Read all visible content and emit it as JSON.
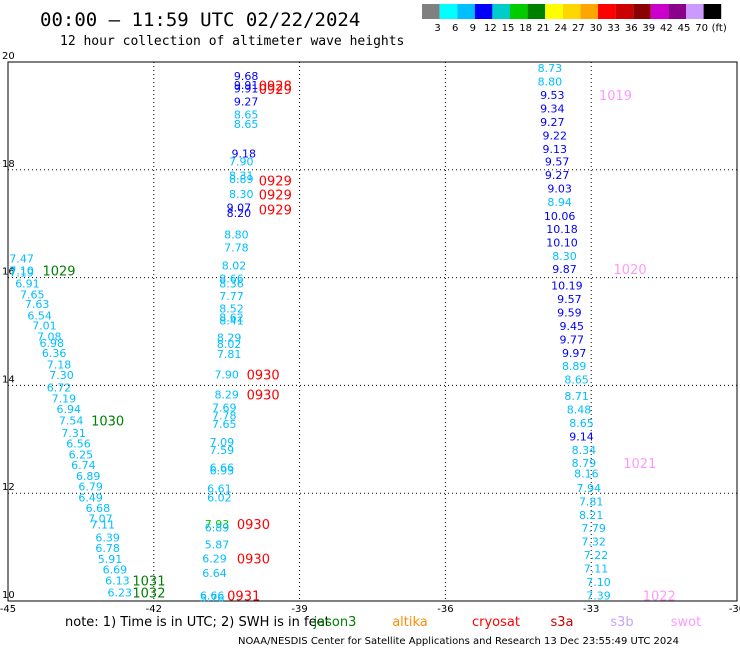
{
  "header": {
    "title": "00:00 – 11:59 UTC 02/22/2024",
    "subtitle": "12 hour collection of altimeter wave heights"
  },
  "colorbar": {
    "labels": [
      "3",
      "6",
      "9",
      "12",
      "15",
      "18",
      "21",
      "24",
      "27",
      "30",
      "33",
      "36",
      "39",
      "42",
      "45",
      "70",
      "(ft)"
    ],
    "colors": [
      "#808080",
      "#00ffff",
      "#00bfff",
      "#0000ff",
      "#00cccc",
      "#00cc00",
      "#008000",
      "#ffff00",
      "#ffd700",
      "#ffa500",
      "#ff0000",
      "#cc0000",
      "#8b0000",
      "#cc00cc",
      "#8b008b",
      "#cc99ff",
      "#000000"
    ]
  },
  "footer": {
    "note": "note:  1) Time is in UTC; 2) SWH is in feet",
    "satellites": [
      {
        "name": "jason3",
        "color": "#008000"
      },
      {
        "name": "altika",
        "color": "#ff8c00"
      },
      {
        "name": "cryosat",
        "color": "#ff0000"
      },
      {
        "name": "s3a",
        "color": "#cc0000"
      },
      {
        "name": "s3b",
        "color": "#c8a2ff"
      },
      {
        "name": "swot",
        "color": "#ff99ff"
      }
    ],
    "credit": "NOAA/NESDIS Center for Satellite Applications and Research   13 Dec 23:55:49 UTC 2024"
  },
  "chart_data": {
    "type": "scatter",
    "xlim": [
      -45,
      -30
    ],
    "ylim": [
      10,
      20
    ],
    "x_ticks": [
      "-45",
      "-42",
      "-39",
      "-36",
      "-33",
      "-30"
    ],
    "y_ticks": [
      "10",
      "12",
      "14",
      "16",
      "18",
      "20"
    ],
    "grid": true,
    "tracks": [
      {
        "name": "left track",
        "points": [
          {
            "x": -44.72,
            "y": 16.35,
            "v": "7.47",
            "c": "#00bfff"
          },
          {
            "x": -44.72,
            "y": 16.13,
            "v": "7.10",
            "c": "#00bfff"
          },
          {
            "x": -44.72,
            "y": 16.09,
            "v": "7.19",
            "c": "#00bfff"
          },
          {
            "x": -44.6,
            "y": 15.89,
            "v": "6.91",
            "c": "#00bfff"
          },
          {
            "x": -44.5,
            "y": 15.69,
            "v": "7.65",
            "c": "#00bfff"
          },
          {
            "x": -44.4,
            "y": 15.51,
            "v": "7.63",
            "c": "#00bfff"
          },
          {
            "x": -44.35,
            "y": 15.3,
            "v": "6.54",
            "c": "#00bfff"
          },
          {
            "x": -44.25,
            "y": 15.11,
            "v": "7.01",
            "c": "#00bfff"
          },
          {
            "x": -44.15,
            "y": 14.91,
            "v": "7.08",
            "c": "#00bfff"
          },
          {
            "x": -44.1,
            "y": 14.79,
            "v": "6.98",
            "c": "#00bfff"
          },
          {
            "x": -44.05,
            "y": 14.6,
            "v": "6.36",
            "c": "#00bfff"
          },
          {
            "x": -43.95,
            "y": 14.39,
            "v": "7.18",
            "c": "#00bfff"
          },
          {
            "x": -43.9,
            "y": 14.19,
            "v": "7.30",
            "c": "#00bfff"
          },
          {
            "x": -43.95,
            "y": 13.96,
            "v": "6.72",
            "c": "#00bfff"
          },
          {
            "x": -43.85,
            "y": 13.76,
            "v": "7.19",
            "c": "#00bfff"
          },
          {
            "x": -43.75,
            "y": 13.56,
            "v": "6.94",
            "c": "#00bfff"
          },
          {
            "x": -43.7,
            "y": 13.35,
            "v": "7.54",
            "c": "#00bfff"
          },
          {
            "x": -43.65,
            "y": 13.12,
            "v": "7.31",
            "c": "#00bfff"
          },
          {
            "x": -43.55,
            "y": 12.92,
            "v": "6.56",
            "c": "#00bfff"
          },
          {
            "x": -43.5,
            "y": 12.72,
            "v": "6.25",
            "c": "#00bfff"
          },
          {
            "x": -43.45,
            "y": 12.52,
            "v": "6.74",
            "c": "#00bfff"
          },
          {
            "x": -43.35,
            "y": 12.32,
            "v": "6.89",
            "c": "#00bfff"
          },
          {
            "x": -43.3,
            "y": 12.12,
            "v": "6.79",
            "c": "#00bfff"
          },
          {
            "x": -43.3,
            "y": 11.92,
            "v": "6.49",
            "c": "#00bfff"
          },
          {
            "x": -43.15,
            "y": 11.73,
            "v": "6.68",
            "c": "#00bfff"
          },
          {
            "x": -43.1,
            "y": 11.53,
            "v": "7.07",
            "c": "#00bfff"
          },
          {
            "x": -43.05,
            "y": 11.42,
            "v": "7.11",
            "c": "#00bfff"
          },
          {
            "x": -42.95,
            "y": 11.18,
            "v": "6.39",
            "c": "#00bfff"
          },
          {
            "x": -42.95,
            "y": 10.98,
            "v": "6.78",
            "c": "#00bfff"
          },
          {
            "x": -42.9,
            "y": 10.78,
            "v": "5.91",
            "c": "#00bfff"
          },
          {
            "x": -42.8,
            "y": 10.58,
            "v": "6.69",
            "c": "#00bfff"
          },
          {
            "x": -42.75,
            "y": 10.38,
            "v": "6.13",
            "c": "#00bfff"
          },
          {
            "x": -42.7,
            "y": 10.16,
            "v": "6.23",
            "c": "#00bfff"
          }
        ]
      },
      {
        "name": "middle track",
        "points": [
          {
            "x": -40.1,
            "y": 19.74,
            "v": "9.68",
            "c": "#0000ff"
          },
          {
            "x": -40.1,
            "y": 19.57,
            "v": "9.91",
            "c": "#0000ff"
          },
          {
            "x": -40.1,
            "y": 19.51,
            "v": "9.91",
            "c": "#0000ff"
          },
          {
            "x": -40.1,
            "y": 19.27,
            "v": "9.27",
            "c": "#0000ff"
          },
          {
            "x": -40.1,
            "y": 19.03,
            "v": "8.65",
            "c": "#00bfff"
          },
          {
            "x": -40.1,
            "y": 18.85,
            "v": "8.65",
            "c": "#00bfff"
          },
          {
            "x": -40.15,
            "y": 18.3,
            "v": "9.18",
            "c": "#0000ff"
          },
          {
            "x": -40.2,
            "y": 18.15,
            "v": "7.90",
            "c": "#00bfff"
          },
          {
            "x": -40.2,
            "y": 17.89,
            "v": "8.31",
            "c": "#00bfff"
          },
          {
            "x": -40.2,
            "y": 17.83,
            "v": "8.89",
            "c": "#00bfff"
          },
          {
            "x": -40.2,
            "y": 17.55,
            "v": "8.30",
            "c": "#00bfff"
          },
          {
            "x": -40.25,
            "y": 17.3,
            "v": "9.07",
            "c": "#0000ff"
          },
          {
            "x": -40.25,
            "y": 17.2,
            "v": "8.20",
            "c": "#0000ff"
          },
          {
            "x": -40.3,
            "y": 16.8,
            "v": "8.80",
            "c": "#00bfff"
          },
          {
            "x": -40.3,
            "y": 16.56,
            "v": "7.78",
            "c": "#00bfff"
          },
          {
            "x": -40.35,
            "y": 16.22,
            "v": "8.02",
            "c": "#00bfff"
          },
          {
            "x": -40.4,
            "y": 15.98,
            "v": "8.66",
            "c": "#00bfff"
          },
          {
            "x": -40.4,
            "y": 15.89,
            "v": "8.36",
            "c": "#00bfff"
          },
          {
            "x": -40.4,
            "y": 15.66,
            "v": "7.77",
            "c": "#00bfff"
          },
          {
            "x": -40.4,
            "y": 15.43,
            "v": "8.52",
            "c": "#00bfff"
          },
          {
            "x": -40.4,
            "y": 15.26,
            "v": "8.62",
            "c": "#00bfff"
          },
          {
            "x": -40.4,
            "y": 15.2,
            "v": "8.41",
            "c": "#00bfff"
          },
          {
            "x": -40.45,
            "y": 14.89,
            "v": "8.29",
            "c": "#00bfff"
          },
          {
            "x": -40.45,
            "y": 14.77,
            "v": "8.02",
            "c": "#00bfff"
          },
          {
            "x": -40.45,
            "y": 14.58,
            "v": "7.81",
            "c": "#00bfff"
          },
          {
            "x": -40.5,
            "y": 14.2,
            "v": "7.90",
            "c": "#00bfff"
          },
          {
            "x": -40.5,
            "y": 13.83,
            "v": "8.29",
            "c": "#00bfff"
          },
          {
            "x": -40.55,
            "y": 13.59,
            "v": "7.69",
            "c": "#00bfff"
          },
          {
            "x": -40.55,
            "y": 13.44,
            "v": "7.78",
            "c": "#00bfff"
          },
          {
            "x": -40.55,
            "y": 13.28,
            "v": "7.65",
            "c": "#00bfff"
          },
          {
            "x": -40.6,
            "y": 12.95,
            "v": "7.09",
            "c": "#00bfff"
          },
          {
            "x": -40.6,
            "y": 12.8,
            "v": "7.59",
            "c": "#00bfff"
          },
          {
            "x": -40.6,
            "y": 12.48,
            "v": "6.66",
            "c": "#00bfff"
          },
          {
            "x": -40.6,
            "y": 12.42,
            "v": "6.93",
            "c": "#00bfff"
          },
          {
            "x": -40.65,
            "y": 12.09,
            "v": "6.61",
            "c": "#00bfff"
          },
          {
            "x": -40.65,
            "y": 11.92,
            "v": "6.02",
            "c": "#00bfff"
          },
          {
            "x": -40.7,
            "y": 11.43,
            "v": "7.93",
            "c": "#00cc00"
          },
          {
            "x": -40.7,
            "y": 11.36,
            "v": "6.89",
            "c": "#00bfff"
          },
          {
            "x": -40.7,
            "y": 11.05,
            "v": "5.87",
            "c": "#00bfff"
          },
          {
            "x": -40.75,
            "y": 10.79,
            "v": "6.29",
            "c": "#00bfff"
          },
          {
            "x": -40.75,
            "y": 10.52,
            "v": "6.64",
            "c": "#00bfff"
          },
          {
            "x": -40.8,
            "y": 10.1,
            "v": "6.66",
            "c": "#00bfff"
          },
          {
            "x": -40.8,
            "y": 10.06,
            "v": "5.76",
            "c": "#00bfff"
          }
        ]
      },
      {
        "name": "right track",
        "points": [
          {
            "x": -33.85,
            "y": 19.89,
            "v": "8.73",
            "c": "#00bfff"
          },
          {
            "x": -33.85,
            "y": 19.64,
            "v": "8.80",
            "c": "#00bfff"
          },
          {
            "x": -33.8,
            "y": 19.39,
            "v": "9.53",
            "c": "#0000ff"
          },
          {
            "x": -33.8,
            "y": 19.14,
            "v": "9.34",
            "c": "#0000ff"
          },
          {
            "x": -33.8,
            "y": 18.89,
            "v": "9.27",
            "c": "#0000ff"
          },
          {
            "x": -33.75,
            "y": 18.64,
            "v": "9.22",
            "c": "#0000ff"
          },
          {
            "x": -33.75,
            "y": 18.39,
            "v": "9.13",
            "c": "#0000ff"
          },
          {
            "x": -33.7,
            "y": 18.15,
            "v": "9.57",
            "c": "#0000ff"
          },
          {
            "x": -33.7,
            "y": 17.9,
            "v": "9.27",
            "c": "#0000ff"
          },
          {
            "x": -33.65,
            "y": 17.65,
            "v": "9.03",
            "c": "#0000ff"
          },
          {
            "x": -33.65,
            "y": 17.4,
            "v": "8.94",
            "c": "#00bfff"
          },
          {
            "x": -33.65,
            "y": 17.14,
            "v": "10.06",
            "c": "#0000ff"
          },
          {
            "x": -33.6,
            "y": 16.9,
            "v": "10.18",
            "c": "#0000ff"
          },
          {
            "x": -33.6,
            "y": 16.65,
            "v": "10.10",
            "c": "#0000ff"
          },
          {
            "x": -33.55,
            "y": 16.4,
            "v": "8.30",
            "c": "#00bfff"
          },
          {
            "x": -33.55,
            "y": 16.16,
            "v": "9.87",
            "c": "#0000ff"
          },
          {
            "x": -33.5,
            "y": 15.85,
            "v": "10.19",
            "c": "#0000ff"
          },
          {
            "x": -33.45,
            "y": 15.6,
            "v": "9.57",
            "c": "#0000ff"
          },
          {
            "x": -33.45,
            "y": 15.35,
            "v": "9.59",
            "c": "#0000ff"
          },
          {
            "x": -33.4,
            "y": 15.1,
            "v": "9.45",
            "c": "#0000ff"
          },
          {
            "x": -33.4,
            "y": 14.85,
            "v": "9.77",
            "c": "#0000ff"
          },
          {
            "x": -33.35,
            "y": 14.6,
            "v": "9.97",
            "c": "#0000ff"
          },
          {
            "x": -33.35,
            "y": 14.36,
            "v": "8.89",
            "c": "#00bfff"
          },
          {
            "x": -33.3,
            "y": 14.11,
            "v": "8.65",
            "c": "#00bfff"
          },
          {
            "x": -33.3,
            "y": 13.8,
            "v": "8.71",
            "c": "#00bfff"
          },
          {
            "x": -33.25,
            "y": 13.55,
            "v": "8.48",
            "c": "#00bfff"
          },
          {
            "x": -33.2,
            "y": 13.3,
            "v": "8.65",
            "c": "#00bfff"
          },
          {
            "x": -33.2,
            "y": 13.05,
            "v": "9.14",
            "c": "#0000ff"
          },
          {
            "x": -33.15,
            "y": 12.8,
            "v": "8.34",
            "c": "#00bfff"
          },
          {
            "x": -33.15,
            "y": 12.56,
            "v": "8.79",
            "c": "#00bfff"
          },
          {
            "x": -33.1,
            "y": 12.37,
            "v": "8.16",
            "c": "#00bfff"
          },
          {
            "x": -33.05,
            "y": 12.1,
            "v": "7.94",
            "c": "#00bfff"
          },
          {
            "x": -33.0,
            "y": 11.85,
            "v": "7.81",
            "c": "#00bfff"
          },
          {
            "x": -33.0,
            "y": 11.6,
            "v": "8.21",
            "c": "#00bfff"
          },
          {
            "x": -32.95,
            "y": 11.35,
            "v": "7.79",
            "c": "#00bfff"
          },
          {
            "x": -32.95,
            "y": 11.1,
            "v": "7.32",
            "c": "#00bfff"
          },
          {
            "x": -32.9,
            "y": 10.85,
            "v": "7.22",
            "c": "#00bfff"
          },
          {
            "x": -32.9,
            "y": 10.6,
            "v": "7.11",
            "c": "#00bfff"
          },
          {
            "x": -32.85,
            "y": 10.35,
            "v": "7.10",
            "c": "#00bfff"
          },
          {
            "x": -32.85,
            "y": 10.1,
            "v": "7.39",
            "c": "#00bfff"
          }
        ]
      }
    ],
    "time_labels": [
      {
        "x": -43.95,
        "y": 16.13,
        "text": "1029",
        "c": "#008000"
      },
      {
        "x": -42.95,
        "y": 13.35,
        "text": "1030",
        "c": "#008000"
      },
      {
        "x": -42.1,
        "y": 10.38,
        "text": "1031",
        "c": "#008000"
      },
      {
        "x": -42.1,
        "y": 10.16,
        "text": "1032",
        "c": "#008000"
      },
      {
        "x": -39.5,
        "y": 19.56,
        "text": "0928",
        "c": "#ff0000"
      },
      {
        "x": -39.5,
        "y": 19.5,
        "text": "0929",
        "c": "#ff0000"
      },
      {
        "x": -39.5,
        "y": 17.8,
        "text": "0929",
        "c": "#ff0000"
      },
      {
        "x": -39.5,
        "y": 17.54,
        "text": "0929",
        "c": "#ff0000"
      },
      {
        "x": -39.5,
        "y": 17.26,
        "text": "0929",
        "c": "#ff0000"
      },
      {
        "x": -39.75,
        "y": 14.2,
        "text": "0930",
        "c": "#ff0000"
      },
      {
        "x": -39.75,
        "y": 13.83,
        "text": "0930",
        "c": "#ff0000"
      },
      {
        "x": -39.95,
        "y": 11.43,
        "text": "0930",
        "c": "#ff0000"
      },
      {
        "x": -39.95,
        "y": 10.79,
        "text": "0930",
        "c": "#ff0000"
      },
      {
        "x": -40.15,
        "y": 10.1,
        "text": "0931",
        "c": "#ff0000"
      },
      {
        "x": -32.5,
        "y": 19.39,
        "text": "1019",
        "c": "#ff99ff"
      },
      {
        "x": -32.2,
        "y": 16.16,
        "text": "1020",
        "c": "#ff99ff"
      },
      {
        "x": -32.0,
        "y": 12.56,
        "text": "1021",
        "c": "#ff99ff"
      },
      {
        "x": -31.6,
        "y": 10.1,
        "text": "1022",
        "c": "#ff99ff"
      }
    ]
  }
}
